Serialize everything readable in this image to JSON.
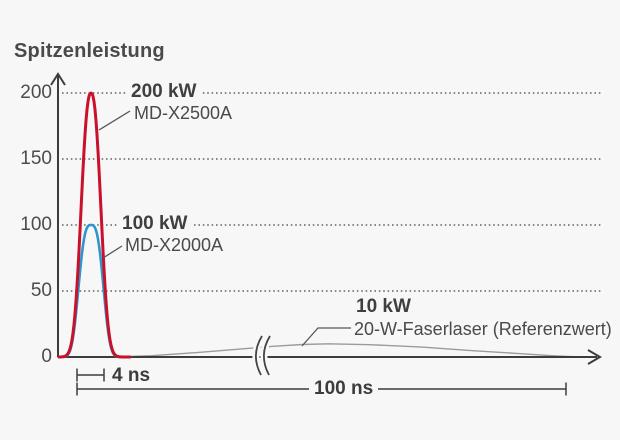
{
  "chart_data": {
    "type": "line",
    "title": "Spitzenleistung",
    "y_unit": "kW",
    "x_unit": "ns",
    "y_ticks": [
      0,
      50,
      100,
      150,
      200
    ],
    "ylim": [
      0,
      210
    ],
    "grid": "dotted-horizontal",
    "axis_break_on_x": true,
    "legend_position": "inline-annotations",
    "series": [
      {
        "name": "MD-X2500A",
        "peak_label": "200 kW",
        "peak_kw": 200,
        "pulse_width_ns": 4,
        "color": "#c9112b",
        "shape": "pulse"
      },
      {
        "name": "MD-X2000A",
        "peak_label": "100 kW",
        "peak_kw": 100,
        "pulse_width_ns": 4,
        "color": "#2e95cd",
        "shape": "pulse"
      },
      {
        "name": "20-W-Faserlaser (Referenzwert)",
        "peak_label": "10 kW",
        "peak_kw": 10,
        "pulse_width_ns": 100,
        "color": "#9b9b9b",
        "shape": "broad-pulse",
        "profile": [
          [
            0.11,
            0
          ],
          [
            0.18,
            1
          ],
          [
            0.27,
            3.5
          ],
          [
            0.35,
            6
          ],
          [
            0.41,
            8
          ],
          [
            0.47,
            9.5
          ],
          [
            0.52,
            10
          ],
          [
            0.6,
            9.3
          ],
          [
            0.7,
            7.5
          ],
          [
            0.79,
            5
          ],
          [
            0.89,
            2.5
          ],
          [
            0.95,
            1
          ],
          [
            0.99,
            0.2
          ]
        ]
      }
    ],
    "annotations": {
      "pulse_width_short": "4 ns",
      "pulse_width_long": "100 ns"
    },
    "colors": {
      "background": "#f7f7f7",
      "axis": "#3c3c3c",
      "grid": "#4a4a4a",
      "text": "#3f3f3f",
      "leader": "#555555"
    }
  }
}
